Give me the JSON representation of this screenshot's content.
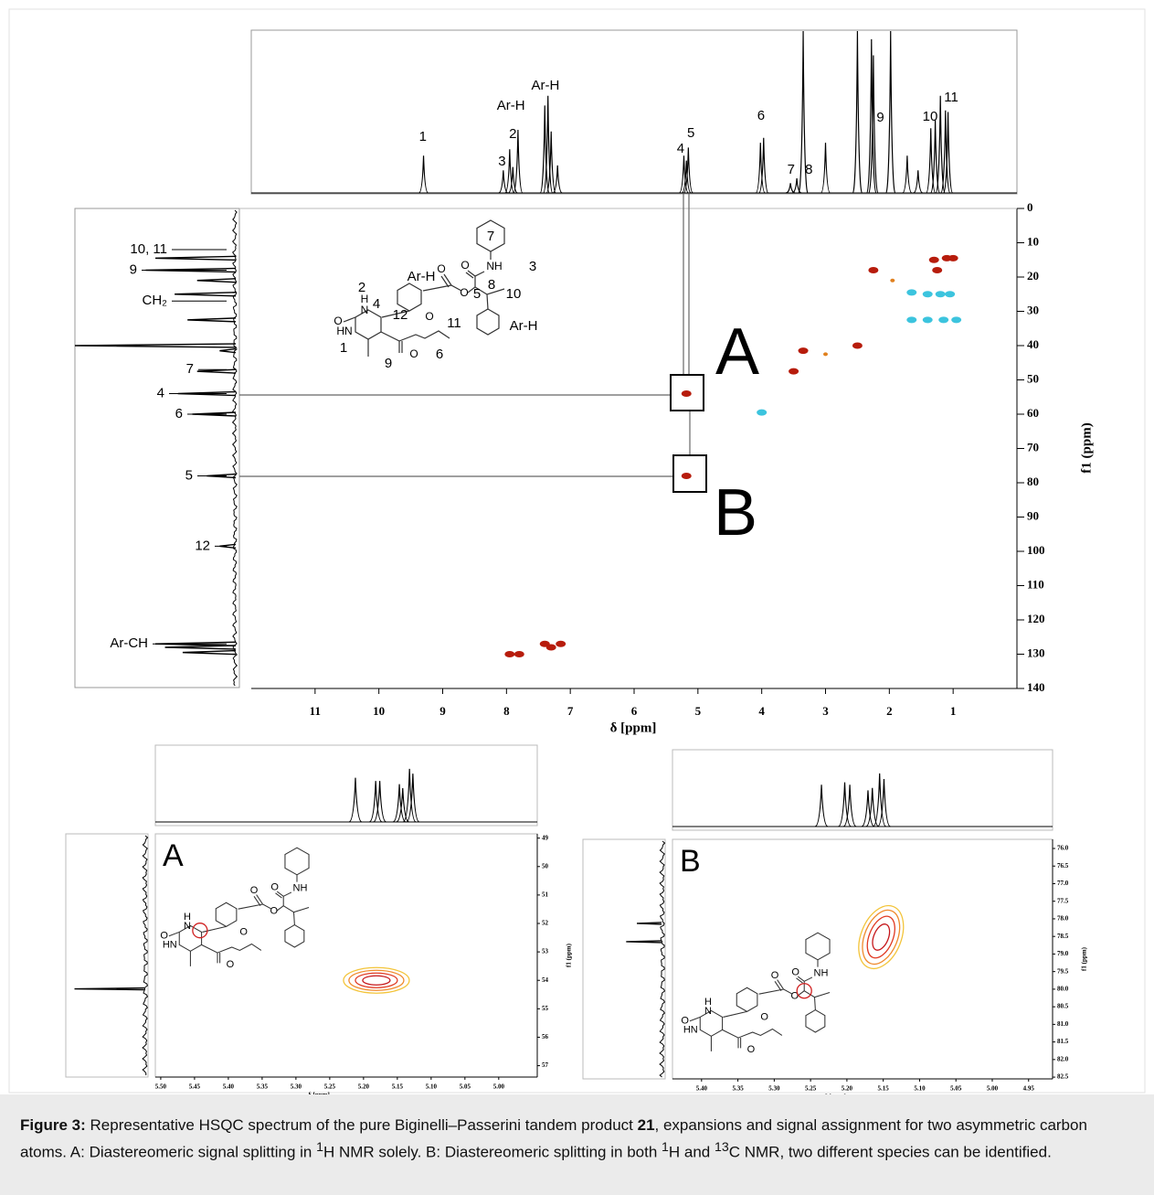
{
  "main": {
    "xlabel": "δ [ppm]",
    "ylabel": "f1 (ppm)",
    "xlim": [
      12,
      0
    ],
    "xticks": [
      11,
      10,
      9,
      8,
      7,
      6,
      5,
      4,
      3,
      2,
      1
    ],
    "ylim": [
      0,
      140
    ],
    "yticks": [
      0,
      10,
      20,
      30,
      40,
      50,
      60,
      70,
      80,
      90,
      100,
      110,
      120,
      130,
      140
    ],
    "h_peaks": [
      {
        "ppm": 9.3,
        "intensity": 23
      },
      {
        "ppm": 8.05,
        "intensity": 14
      },
      {
        "ppm": 7.95,
        "intensity": 27
      },
      {
        "ppm": 7.9,
        "intensity": 16
      },
      {
        "ppm": 7.82,
        "intensity": 39
      },
      {
        "ppm": 7.4,
        "intensity": 54
      },
      {
        "ppm": 7.35,
        "intensity": 60
      },
      {
        "ppm": 7.3,
        "intensity": 38
      },
      {
        "ppm": 7.2,
        "intensity": 17
      },
      {
        "ppm": 5.22,
        "intensity": 23
      },
      {
        "ppm": 5.18,
        "intensity": 20
      },
      {
        "ppm": 5.15,
        "intensity": 28
      },
      {
        "ppm": 4.02,
        "intensity": 31
      },
      {
        "ppm": 3.97,
        "intensity": 34
      },
      {
        "ppm": 3.55,
        "intensity": 6
      },
      {
        "ppm": 3.45,
        "intensity": 9
      },
      {
        "ppm": 3.35,
        "intensity": 100
      },
      {
        "ppm": 3.0,
        "intensity": 31
      },
      {
        "ppm": 2.5,
        "intensity": 100
      },
      {
        "ppm": 2.28,
        "intensity": 95
      },
      {
        "ppm": 2.25,
        "intensity": 85
      },
      {
        "ppm": 1.98,
        "intensity": 100
      },
      {
        "ppm": 1.72,
        "intensity": 23
      },
      {
        "ppm": 1.55,
        "intensity": 14
      },
      {
        "ppm": 1.35,
        "intensity": 40
      },
      {
        "ppm": 1.28,
        "intensity": 45
      },
      {
        "ppm": 1.2,
        "intensity": 60
      },
      {
        "ppm": 1.12,
        "intensity": 51
      },
      {
        "ppm": 1.08,
        "intensity": 50
      }
    ],
    "h_labels": [
      {
        "text": "1",
        "ppm": 9.31
      },
      {
        "text": "3",
        "ppm": 8.07
      },
      {
        "text": "2",
        "ppm": 7.9
      },
      {
        "text": "Ar-H",
        "ppm": 7.93
      },
      {
        "text": "Ar-H",
        "ppm": 7.39
      },
      {
        "text": "4",
        "ppm": 5.27
      },
      {
        "text": "5",
        "ppm": 5.11
      },
      {
        "text": "6",
        "ppm": 4.01
      },
      {
        "text": "7",
        "ppm": 3.54
      },
      {
        "text": "8",
        "ppm": 3.26
      },
      {
        "text": "9",
        "ppm": 2.14
      },
      {
        "text": "10",
        "ppm": 1.36
      },
      {
        "text": "11",
        "ppm": 1.03
      }
    ],
    "c_peaks": [
      {
        "ppm": 14.5,
        "intensity": 50
      },
      {
        "ppm": 18,
        "intensity": 56
      },
      {
        "ppm": 21,
        "intensity": 24
      },
      {
        "ppm": 25,
        "intensity": 38
      },
      {
        "ppm": 32.5,
        "intensity": 30
      },
      {
        "ppm": 40,
        "intensity": 100
      },
      {
        "ppm": 41.5,
        "intensity": 10
      },
      {
        "ppm": 47.5,
        "intensity": 24
      },
      {
        "ppm": 54,
        "intensity": 36
      },
      {
        "ppm": 60,
        "intensity": 27
      },
      {
        "ppm": 78,
        "intensity": 18
      },
      {
        "ppm": 98.5,
        "intensity": 10
      },
      {
        "ppm": 127,
        "intensity": 50
      },
      {
        "ppm": 128,
        "intensity": 44
      },
      {
        "ppm": 129.5,
        "intensity": 33
      }
    ],
    "c_labels": [
      {
        "text": "10, 11",
        "ppm": 12
      },
      {
        "text": "9",
        "ppm": 18
      },
      {
        "text": "CH₂",
        "ppm": 27
      },
      {
        "text": "7",
        "ppm": 47
      },
      {
        "text": "4",
        "ppm": 54
      },
      {
        "text": "6",
        "ppm": 60
      },
      {
        "text": "5",
        "ppm": 78
      },
      {
        "text": "12",
        "ppm": 98.5
      },
      {
        "text": "Ar-CH",
        "ppm": 127
      }
    ],
    "cross_peaks": [
      {
        "h": 5.18,
        "c": 54,
        "phase": "positive"
      },
      {
        "h": 5.18,
        "c": 78,
        "phase": "positive"
      },
      {
        "h": 3.5,
        "c": 47.5,
        "phase": "positive"
      },
      {
        "h": 3.35,
        "c": 41.5,
        "phase": "positive"
      },
      {
        "h": 3.0,
        "c": 42.5,
        "phase": "weak"
      },
      {
        "h": 2.5,
        "c": 40,
        "phase": "positive"
      },
      {
        "h": 2.25,
        "c": 18,
        "phase": "positive"
      },
      {
        "h": 1.95,
        "c": 21,
        "phase": "weak"
      },
      {
        "h": 1.3,
        "c": 15,
        "phase": "positive"
      },
      {
        "h": 1.1,
        "c": 14.5,
        "phase": "positive"
      },
      {
        "h": 1.0,
        "c": 14.5,
        "phase": "positive"
      },
      {
        "h": 1.25,
        "c": 18,
        "phase": "positive"
      },
      {
        "h": 4.0,
        "c": 59.5,
        "phase": "negative"
      },
      {
        "h": 1.65,
        "c": 24.5,
        "phase": "negative"
      },
      {
        "h": 1.4,
        "c": 25,
        "phase": "negative"
      },
      {
        "h": 1.2,
        "c": 25,
        "phase": "negative"
      },
      {
        "h": 1.05,
        "c": 25,
        "phase": "negative"
      },
      {
        "h": 1.65,
        "c": 32.5,
        "phase": "negative"
      },
      {
        "h": 1.4,
        "c": 32.5,
        "phase": "negative"
      },
      {
        "h": 1.15,
        "c": 32.5,
        "phase": "negative"
      },
      {
        "h": 0.95,
        "c": 32.5,
        "phase": "negative"
      },
      {
        "h": 7.95,
        "c": 130,
        "phase": "positive"
      },
      {
        "h": 7.8,
        "c": 130,
        "phase": "positive"
      },
      {
        "h": 7.4,
        "c": 127,
        "phase": "positive"
      },
      {
        "h": 7.3,
        "c": 128,
        "phase": "positive"
      },
      {
        "h": 7.15,
        "c": 127,
        "phase": "positive"
      }
    ],
    "colors": {
      "positive": "#b71c0c",
      "negative": "#3cc4de",
      "weak": "#e0801e"
    },
    "boxes": [
      "A",
      "B"
    ],
    "structure_labels": [
      "7",
      "NH",
      "3",
      "O",
      "O",
      "8",
      "5",
      "10",
      "Ar-H",
      "O",
      "2",
      "H",
      "N",
      "4",
      "O",
      "HN",
      "1",
      "12",
      "O",
      "11",
      "O",
      "6",
      "9",
      "Ar-H"
    ]
  },
  "insets": [
    {
      "letter": "A",
      "xlabel": "δ [ppm]",
      "ylabel": "f1 (ppm)",
      "xlim": [
        5.508,
        4.943
      ],
      "xticks": [
        {
          "value": 5.5,
          "label": "5.50"
        },
        {
          "value": 5.45,
          "label": "5.45"
        },
        {
          "value": 5.4,
          "label": "5.40"
        },
        {
          "value": 5.35,
          "label": "5.35"
        },
        {
          "value": 5.3,
          "label": "5.30"
        },
        {
          "value": 5.25,
          "label": "5.25"
        },
        {
          "value": 5.2,
          "label": "5.20"
        },
        {
          "value": 5.15,
          "label": "5.15"
        },
        {
          "value": 5.1,
          "label": "5.10"
        },
        {
          "value": 5.05,
          "label": "5.05"
        },
        {
          "value": 5.0,
          "label": "5.00"
        }
      ],
      "ylim": [
        48.85,
        57.4
      ],
      "yticks": [
        49,
        50,
        51,
        52,
        53,
        54,
        55,
        56,
        57
      ],
      "h_peaks": [
        {
          "ppm": 5.212,
          "intensity": 55
        },
        {
          "ppm": 5.182,
          "intensity": 51
        },
        {
          "ppm": 5.176,
          "intensity": 51
        },
        {
          "ppm": 5.147,
          "intensity": 47
        },
        {
          "ppm": 5.142,
          "intensity": 42
        },
        {
          "ppm": 5.132,
          "intensity": 66
        },
        {
          "ppm": 5.127,
          "intensity": 60
        }
      ],
      "c_peaks": [
        {
          "ppm": 54.3,
          "intensity": 85
        }
      ],
      "contour": {
        "h": 5.181,
        "c": 54.0
      },
      "structure_labels": [
        "NH",
        "O",
        "O",
        "O",
        "O",
        "N",
        "H",
        "HN",
        "O",
        "O"
      ]
    },
    {
      "letter": "B",
      "xlabel": "δ [ppm]",
      "ylabel": "f1 (ppm)",
      "xlim": [
        5.44,
        4.917
      ],
      "xticks": [
        {
          "value": 5.4,
          "label": "5.40"
        },
        {
          "value": 5.35,
          "label": "5.35"
        },
        {
          "value": 5.3,
          "label": "5.30"
        },
        {
          "value": 5.25,
          "label": "5.25"
        },
        {
          "value": 5.2,
          "label": "5.20"
        },
        {
          "value": 5.15,
          "label": "5.15"
        },
        {
          "value": 5.1,
          "label": "5.10"
        },
        {
          "value": 5.05,
          "label": "5.05"
        },
        {
          "value": 5.0,
          "label": "5.00"
        },
        {
          "value": 4.95,
          "label": "4.95"
        }
      ],
      "ylim": [
        75.74,
        82.55
      ],
      "yticks": [
        {
          "value": 76,
          "label": "76.0"
        },
        {
          "value": 76.5,
          "label": "76.5"
        },
        {
          "value": 77,
          "label": "77.0"
        },
        {
          "value": 77.5,
          "label": "77.5"
        },
        {
          "value": 78,
          "label": "78.0"
        },
        {
          "value": 78.5,
          "label": "78.5"
        },
        {
          "value": 79,
          "label": "79.0"
        },
        {
          "value": 79.5,
          "label": "79.5"
        },
        {
          "value": 80,
          "label": "80.0"
        },
        {
          "value": 80.5,
          "label": "80.5"
        },
        {
          "value": 81,
          "label": "81.0"
        },
        {
          "value": 81.5,
          "label": "81.5"
        },
        {
          "value": 82,
          "label": "82.0"
        },
        {
          "value": 82.5,
          "label": "82.5"
        }
      ],
      "h_peaks": [
        {
          "ppm": 5.235,
          "intensity": 52
        },
        {
          "ppm": 5.203,
          "intensity": 55
        },
        {
          "ppm": 5.196,
          "intensity": 52
        },
        {
          "ppm": 5.171,
          "intensity": 45
        },
        {
          "ppm": 5.165,
          "intensity": 48
        },
        {
          "ppm": 5.155,
          "intensity": 66
        },
        {
          "ppm": 5.149,
          "intensity": 59
        }
      ],
      "c_peaks": [
        {
          "ppm": 78.13,
          "intensity": 30
        },
        {
          "ppm": 78.65,
          "intensity": 43
        }
      ],
      "contour": {
        "h": 5.153,
        "c": 78.52
      },
      "structure_labels": [
        "NH",
        "O",
        "O",
        "O",
        "O",
        "N",
        "H",
        "HN",
        "O",
        "O"
      ]
    }
  ],
  "caption": [
    {
      "text": "Figure 3:",
      "style": "bold"
    },
    {
      "text": " Representative HSQC spectrum of the pure Biginelli–Passerini tandem product ",
      "style": "normal"
    },
    {
      "text": "21",
      "style": "bold"
    },
    {
      "text": ", expansions and signal assignment for two asymmetric carbon atoms. A: Diastereomeric signal splitting in ",
      "style": "normal"
    },
    {
      "text": "1",
      "style": "sup"
    },
    {
      "text": "H NMR solely. B: Diastereomeric splitting in both ",
      "style": "normal"
    },
    {
      "text": "1",
      "style": "sup"
    },
    {
      "text": "H and ",
      "style": "normal"
    },
    {
      "text": "13",
      "style": "sup"
    },
    {
      "text": "C NMR, two different species can be identified.",
      "style": "normal"
    }
  ]
}
